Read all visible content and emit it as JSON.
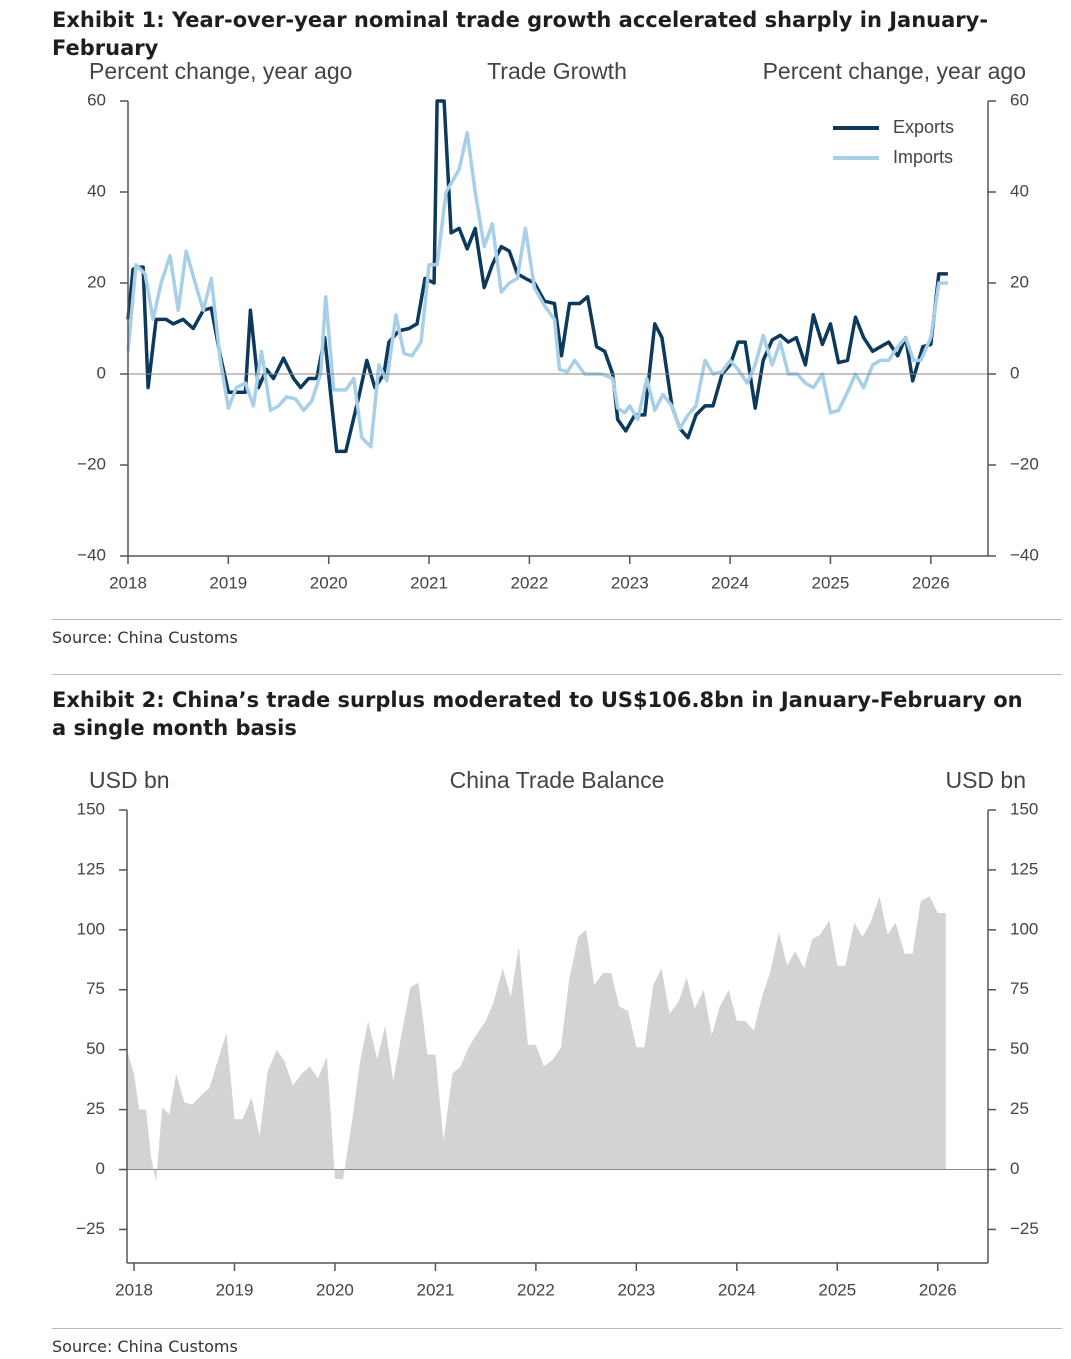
{
  "exhibits": [
    {
      "title": "Exhibit 1: Year-over-year nominal trade growth accelerated sharply in January-February",
      "source": "Source: China Customs"
    },
    {
      "title": "Exhibit 2: China’s trade surplus moderated to US$106.8bn in January-February on a single month basis",
      "source": "Source: China Customs"
    }
  ],
  "chart_data": [
    {
      "type": "line",
      "title": "Trade Growth",
      "y_label": "Percent change, year ago",
      "y2_label": "Percent change, year ago",
      "xlim": [
        2018,
        2026.57
      ],
      "xticks": [
        2018,
        2019,
        2020,
        2021,
        2022,
        2023,
        2024,
        2025,
        2026
      ],
      "ylim": [
        -40,
        60
      ],
      "yticks": [
        {
          "value": -40,
          "label": "−40"
        },
        {
          "value": -20,
          "label": "−20"
        },
        0,
        20,
        40,
        60
      ],
      "y2lim": [
        -40,
        60
      ],
      "y2ticks": [
        {
          "value": -40,
          "label": "−40"
        },
        {
          "value": -20,
          "label": "−20"
        },
        0,
        20,
        40,
        60
      ],
      "legend": "upper right",
      "series": [
        {
          "name": "Exports",
          "color": "#0d3a5c",
          "x": [
            2018.0,
            2018.05,
            2018.1,
            2018.15,
            2018.2,
            2018.28,
            2018.38,
            2018.45,
            2018.55,
            2018.65,
            2018.75,
            2018.83,
            2018.92,
            2019.0,
            2019.08,
            2019.17,
            2019.22,
            2019.3,
            2019.38,
            2019.45,
            2019.55,
            2019.65,
            2019.72,
            2019.8,
            2019.88,
            2019.96,
            2020.08,
            2020.17,
            2020.3,
            2020.38,
            2020.46,
            2020.55,
            2020.6,
            2020.7,
            2020.8,
            2020.88,
            2020.96,
            2021.05,
            2021.08,
            2021.15,
            2021.22,
            2021.3,
            2021.38,
            2021.46,
            2021.55,
            2021.63,
            2021.72,
            2021.8,
            2021.88,
            2021.96,
            2022.05,
            2022.15,
            2022.25,
            2022.32,
            2022.4,
            2022.5,
            2022.58,
            2022.67,
            2022.75,
            2022.83,
            2022.88,
            2022.96,
            2023.05,
            2023.15,
            2023.25,
            2023.32,
            2023.42,
            2023.5,
            2023.58,
            2023.66,
            2023.75,
            2023.83,
            2023.92,
            2024.0,
            2024.08,
            2024.15,
            2024.25,
            2024.33,
            2024.42,
            2024.5,
            2024.58,
            2024.66,
            2024.75,
            2024.83,
            2024.92,
            2025.0,
            2025.08,
            2025.17,
            2025.25,
            2025.33,
            2025.42,
            2025.5,
            2025.58,
            2025.67,
            2025.75,
            2025.82,
            2025.92,
            2026.0,
            2026.08,
            2026.17
          ],
          "values": [
            12,
            23,
            23.5,
            23.5,
            -3,
            12,
            12,
            11,
            12,
            10,
            14,
            14.5,
            4,
            -4,
            -4,
            -4,
            14,
            -3,
            1,
            -1,
            3.5,
            -1,
            -3,
            -1,
            -1,
            8,
            -17,
            -17,
            -5,
            3,
            -3,
            0,
            7,
            9.5,
            10,
            11,
            21,
            20,
            60,
            60,
            31,
            32,
            27.5,
            32,
            19,
            24,
            28,
            27,
            22,
            21,
            20,
            16,
            15.5,
            4,
            15.5,
            15.5,
            17,
            6,
            5,
            0,
            -10,
            -12.5,
            -9,
            -9,
            11,
            8,
            -7,
            -12,
            -14,
            -9,
            -7,
            -7,
            0,
            2,
            7,
            7,
            -7.5,
            3,
            7.5,
            8.5,
            7,
            8,
            2,
            13,
            6.5,
            11,
            2.5,
            3,
            12.5,
            8,
            5,
            6,
            7,
            4,
            8,
            -1.5,
            6,
            6.5,
            22,
            22
          ]
        },
        {
          "name": "Imports",
          "color": "#a8cfe8",
          "x": [
            2018.0,
            2018.08,
            2018.17,
            2018.25,
            2018.33,
            2018.42,
            2018.5,
            2018.58,
            2018.67,
            2018.75,
            2018.83,
            2018.92,
            2019.0,
            2019.08,
            2019.17,
            2019.25,
            2019.33,
            2019.42,
            2019.5,
            2019.58,
            2019.67,
            2019.75,
            2019.83,
            2019.92,
            2019.97,
            2020.05,
            2020.17,
            2020.25,
            2020.33,
            2020.42,
            2020.5,
            2020.58,
            2020.67,
            2020.75,
            2020.83,
            2020.92,
            2021.0,
            2021.08,
            2021.17,
            2021.3,
            2021.38,
            2021.46,
            2021.55,
            2021.63,
            2021.72,
            2021.8,
            2021.88,
            2021.96,
            2022.05,
            2022.15,
            2022.25,
            2022.3,
            2022.38,
            2022.45,
            2022.55,
            2022.65,
            2022.72,
            2022.83,
            2022.88,
            2022.95,
            2023.0,
            2023.08,
            2023.17,
            2023.25,
            2023.33,
            2023.42,
            2023.5,
            2023.58,
            2023.66,
            2023.75,
            2023.83,
            2023.92,
            2024.0,
            2024.08,
            2024.17,
            2024.25,
            2024.33,
            2024.42,
            2024.5,
            2024.58,
            2024.67,
            2024.75,
            2024.83,
            2024.92,
            2025.0,
            2025.08,
            2025.17,
            2025.25,
            2025.33,
            2025.42,
            2025.5,
            2025.58,
            2025.67,
            2025.75,
            2025.83,
            2025.9,
            2026.0,
            2026.08,
            2026.17
          ],
          "values": [
            5,
            24,
            22,
            12,
            20,
            26,
            14,
            27,
            20,
            14,
            21,
            3,
            -7.5,
            -3,
            -2,
            -7,
            5,
            -8,
            -7,
            -5,
            -5.5,
            -8,
            -6,
            0,
            17,
            -3.5,
            -3.5,
            -1,
            -14,
            -16,
            2,
            -1.5,
            13,
            4.5,
            4,
            7,
            24,
            24,
            40,
            45,
            53,
            40,
            28,
            33,
            18,
            20,
            21,
            32,
            19,
            15,
            12,
            1,
            0.5,
            3,
            0,
            0,
            0,
            -1,
            -7.5,
            -8.5,
            -7,
            -10,
            -1,
            -8,
            -4.5,
            -7,
            -12,
            -9,
            -7,
            3,
            0,
            0.5,
            3,
            1,
            -2,
            2,
            8.5,
            2,
            7,
            0,
            0,
            -2,
            -3,
            0,
            -8.5,
            -8,
            -4,
            0,
            -3,
            2,
            3,
            3,
            6,
            8,
            3,
            3,
            8,
            20,
            20
          ]
        }
      ]
    },
    {
      "type": "area",
      "title": "China Trade Balance",
      "y_label": "USD bn",
      "y2_label": "USD bn",
      "xlim": [
        2017.93,
        2026.5
      ],
      "xticks": [
        2018,
        2019,
        2020,
        2021,
        2022,
        2023,
        2024,
        2025,
        2026
      ],
      "ylim": [
        -39,
        150
      ],
      "yticks": [
        {
          "value": -25,
          "label": "−25"
        },
        0,
        25,
        50,
        75,
        100,
        125,
        150
      ],
      "y2lim": [
        -39,
        150
      ],
      "y2ticks": [
        {
          "value": -25,
          "label": "−25"
        },
        0,
        25,
        50,
        75,
        100,
        125,
        150
      ],
      "color": "#d3d3d3",
      "x": [
        2017.93,
        2018.0,
        2018.05,
        2018.12,
        2018.17,
        2018.22,
        2018.28,
        2018.35,
        2018.42,
        2018.5,
        2018.58,
        2018.67,
        2018.75,
        2018.83,
        2018.92,
        2019.0,
        2019.08,
        2019.17,
        2019.25,
        2019.33,
        2019.42,
        2019.5,
        2019.58,
        2019.67,
        2019.75,
        2019.83,
        2019.92,
        2020.0,
        2020.08,
        2020.17,
        2020.25,
        2020.33,
        2020.42,
        2020.5,
        2020.58,
        2020.67,
        2020.75,
        2020.83,
        2020.92,
        2021.0,
        2021.08,
        2021.17,
        2021.25,
        2021.33,
        2021.42,
        2021.5,
        2021.58,
        2021.67,
        2021.75,
        2021.83,
        2021.92,
        2022.0,
        2022.08,
        2022.17,
        2022.25,
        2022.33,
        2022.42,
        2022.5,
        2022.58,
        2022.67,
        2022.75,
        2022.83,
        2022.92,
        2023.0,
        2023.08,
        2023.17,
        2023.25,
        2023.33,
        2023.42,
        2023.5,
        2023.58,
        2023.67,
        2023.75,
        2023.83,
        2023.92,
        2024.0,
        2024.08,
        2024.17,
        2024.25,
        2024.33,
        2024.42,
        2024.5,
        2024.58,
        2024.67,
        2024.75,
        2024.83,
        2024.92,
        2025.0,
        2025.08,
        2025.17,
        2025.25,
        2025.33,
        2025.42,
        2025.5,
        2025.58,
        2025.67,
        2025.75,
        2025.83,
        2025.92,
        2026.0,
        2026.08
      ],
      "values": [
        50,
        40,
        25,
        25,
        5,
        -5,
        26,
        23,
        40,
        28,
        27,
        31,
        34,
        45,
        57,
        21,
        21,
        30,
        14,
        41,
        50,
        45,
        35,
        40,
        43,
        38,
        47,
        -4,
        -4,
        20,
        45,
        62,
        46,
        60,
        37,
        58,
        76,
        78,
        48,
        48,
        12,
        40,
        43,
        51,
        57,
        62,
        70,
        84,
        72,
        93,
        52,
        52,
        43,
        46,
        51,
        79,
        97,
        100,
        77,
        82,
        82,
        68,
        66,
        51,
        51,
        77,
        84,
        65,
        70,
        80,
        67,
        75,
        56,
        68,
        75,
        62,
        62,
        58,
        72,
        82,
        99,
        85,
        91,
        84,
        96,
        98,
        104,
        85,
        85,
        103,
        97,
        103,
        114,
        98,
        103,
        90,
        90,
        112,
        114,
        107,
        107
      ]
    }
  ]
}
